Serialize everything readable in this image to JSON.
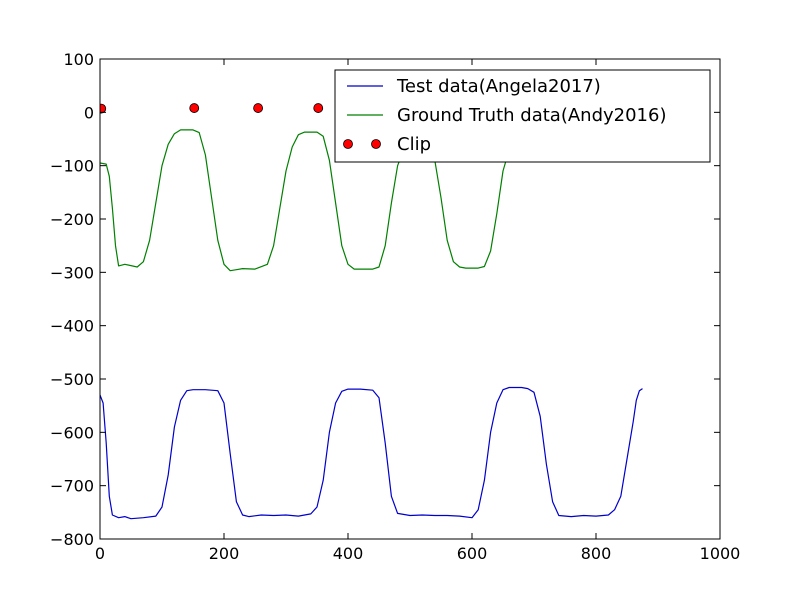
{
  "chart_data": {
    "type": "line",
    "title": "",
    "xlabel": "",
    "ylabel": "",
    "xlim": [
      0,
      1000
    ],
    "ylim": [
      -800,
      100
    ],
    "xticks": [
      0,
      200,
      400,
      600,
      800,
      1000
    ],
    "yticks": [
      100,
      0,
      -100,
      -200,
      -300,
      -400,
      -500,
      -600,
      -700,
      -800
    ],
    "xtick_labels": [
      "0",
      "200",
      "400",
      "600",
      "800",
      "1000"
    ],
    "ytick_labels": [
      "100",
      "0",
      "−100",
      "−200",
      "−300",
      "−400",
      "−500",
      "−600",
      "−700",
      "−800"
    ],
    "grid": false,
    "legend": {
      "position": "top-right",
      "entries": [
        "Test data(Angela2017)",
        "Ground Truth data(Andy2016)",
        "Clip"
      ]
    },
    "series": [
      {
        "name": "Test data(Angela2017)",
        "kind": "line",
        "color": "#0000cc",
        "points": [
          [
            0,
            -530
          ],
          [
            5,
            -545
          ],
          [
            10,
            -620
          ],
          [
            15,
            -720
          ],
          [
            20,
            -755
          ],
          [
            30,
            -760
          ],
          [
            40,
            -758
          ],
          [
            50,
            -762
          ],
          [
            70,
            -760
          ],
          [
            90,
            -757
          ],
          [
            100,
            -740
          ],
          [
            110,
            -680
          ],
          [
            120,
            -590
          ],
          [
            130,
            -540
          ],
          [
            140,
            -522
          ],
          [
            150,
            -520
          ],
          [
            170,
            -520
          ],
          [
            190,
            -522
          ],
          [
            200,
            -545
          ],
          [
            210,
            -640
          ],
          [
            220,
            -730
          ],
          [
            230,
            -755
          ],
          [
            240,
            -758
          ],
          [
            260,
            -755
          ],
          [
            280,
            -756
          ],
          [
            300,
            -755
          ],
          [
            320,
            -757
          ],
          [
            340,
            -753
          ],
          [
            350,
            -740
          ],
          [
            360,
            -690
          ],
          [
            370,
            -600
          ],
          [
            380,
            -545
          ],
          [
            390,
            -523
          ],
          [
            400,
            -519
          ],
          [
            420,
            -519
          ],
          [
            440,
            -521
          ],
          [
            450,
            -535
          ],
          [
            460,
            -620
          ],
          [
            470,
            -720
          ],
          [
            480,
            -752
          ],
          [
            500,
            -756
          ],
          [
            520,
            -755
          ],
          [
            540,
            -756
          ],
          [
            560,
            -756
          ],
          [
            580,
            -757
          ],
          [
            600,
            -760
          ],
          [
            610,
            -745
          ],
          [
            620,
            -690
          ],
          [
            630,
            -600
          ],
          [
            640,
            -545
          ],
          [
            650,
            -520
          ],
          [
            660,
            -516
          ],
          [
            680,
            -516
          ],
          [
            690,
            -518
          ],
          [
            700,
            -525
          ],
          [
            710,
            -570
          ],
          [
            720,
            -660
          ],
          [
            730,
            -730
          ],
          [
            740,
            -756
          ],
          [
            760,
            -758
          ],
          [
            780,
            -756
          ],
          [
            800,
            -757
          ],
          [
            820,
            -755
          ],
          [
            830,
            -745
          ],
          [
            840,
            -720
          ],
          [
            850,
            -650
          ],
          [
            860,
            -580
          ],
          [
            865,
            -540
          ],
          [
            870,
            -522
          ],
          [
            875,
            -518
          ]
        ]
      },
      {
        "name": "Ground Truth data(Andy2016)",
        "kind": "line",
        "color": "#008000",
        "points": [
          [
            0,
            -95
          ],
          [
            10,
            -97
          ],
          [
            15,
            -120
          ],
          [
            20,
            -180
          ],
          [
            25,
            -250
          ],
          [
            30,
            -288
          ],
          [
            40,
            -285
          ],
          [
            60,
            -290
          ],
          [
            70,
            -280
          ],
          [
            80,
            -240
          ],
          [
            90,
            -170
          ],
          [
            100,
            -100
          ],
          [
            110,
            -60
          ],
          [
            120,
            -40
          ],
          [
            130,
            -33
          ],
          [
            150,
            -33
          ],
          [
            160,
            -38
          ],
          [
            170,
            -80
          ],
          [
            180,
            -160
          ],
          [
            190,
            -240
          ],
          [
            200,
            -285
          ],
          [
            210,
            -297
          ],
          [
            220,
            -295
          ],
          [
            230,
            -293
          ],
          [
            250,
            -294
          ],
          [
            270,
            -285
          ],
          [
            280,
            -250
          ],
          [
            290,
            -180
          ],
          [
            300,
            -110
          ],
          [
            310,
            -65
          ],
          [
            320,
            -42
          ],
          [
            330,
            -37
          ],
          [
            350,
            -37
          ],
          [
            360,
            -45
          ],
          [
            370,
            -90
          ],
          [
            380,
            -170
          ],
          [
            390,
            -250
          ],
          [
            400,
            -285
          ],
          [
            410,
            -294
          ],
          [
            420,
            -294
          ],
          [
            440,
            -294
          ],
          [
            450,
            -290
          ],
          [
            460,
            -250
          ],
          [
            470,
            -170
          ],
          [
            480,
            -100
          ],
          [
            490,
            -70
          ],
          [
            500,
            -50
          ],
          [
            510,
            -45
          ],
          [
            520,
            -45
          ],
          [
            530,
            -50
          ],
          [
            540,
            -90
          ],
          [
            550,
            -160
          ],
          [
            560,
            -240
          ],
          [
            570,
            -280
          ],
          [
            580,
            -290
          ],
          [
            590,
            -292
          ],
          [
            610,
            -292
          ],
          [
            620,
            -289
          ],
          [
            630,
            -260
          ],
          [
            640,
            -190
          ],
          [
            650,
            -110
          ],
          [
            660,
            -70
          ],
          [
            670,
            -60
          ]
        ]
      },
      {
        "name": "Clip",
        "kind": "markers",
        "color": "#ff0000",
        "points": [
          [
            2,
            7
          ],
          [
            152,
            8
          ],
          [
            255,
            8
          ],
          [
            352,
            8
          ]
        ]
      }
    ]
  }
}
